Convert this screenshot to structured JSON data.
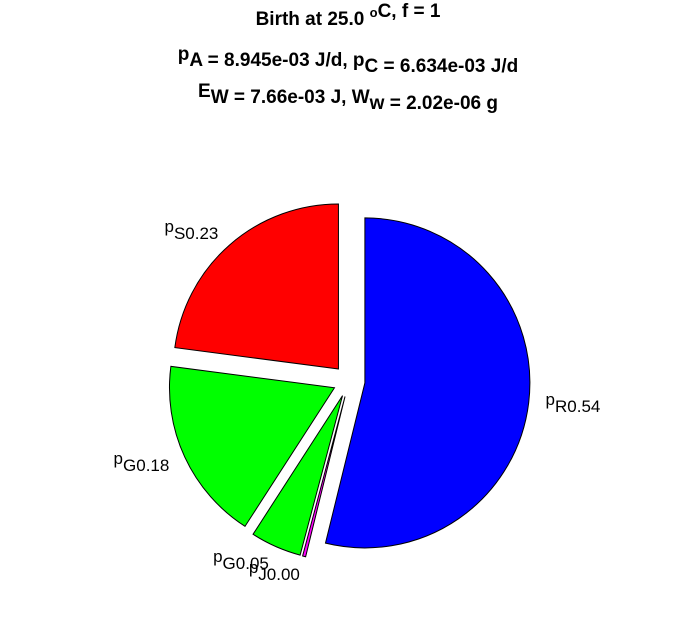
{
  "chart_data": {
    "type": "pie",
    "title": [
      [
        {
          "text": "Birth at 25.0 "
        },
        {
          "sup": "o"
        },
        {
          "text": "C, f = 1"
        }
      ],
      [
        {
          "text": "p"
        },
        {
          "sub": "A"
        },
        {
          "text": " = 8.945e-03 J/d, p"
        },
        {
          "sub": "C"
        },
        {
          "text": " = 6.634e-03 J/d"
        }
      ],
      [
        {
          "text": "E"
        },
        {
          "sub": "W"
        },
        {
          "text": " = 7.66e-03 J, W"
        },
        {
          "sub": "w"
        },
        {
          "text": " = 2.02e-06 g"
        }
      ]
    ],
    "labels": [
      {
        "base": "p",
        "sub": "R"
      },
      {
        "base": "p",
        "sub": "J"
      },
      {
        "base": "p",
        "sub": "G"
      },
      {
        "base": "p",
        "sub": "G"
      },
      {
        "base": "p",
        "sub": "S"
      }
    ],
    "values": [
      0.54,
      0.003,
      0.05,
      0.18,
      0.23
    ],
    "value_labels": [
      "0.54",
      "0.00",
      "0.05",
      "0.18",
      "0.23"
    ],
    "colors": [
      "#0000ff",
      "#ff00ff",
      "#00ff00",
      "#00ff00",
      "#ff0000"
    ],
    "explode": true
  }
}
